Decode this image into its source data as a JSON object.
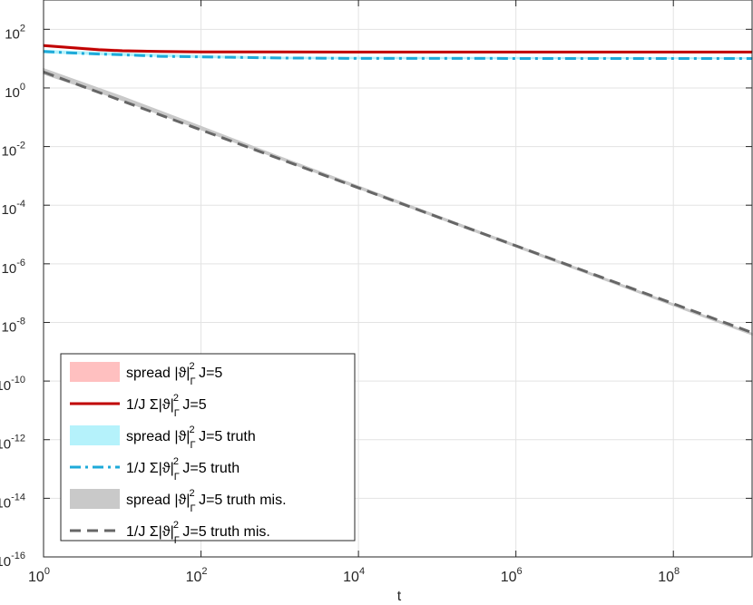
{
  "chart_data": {
    "type": "line",
    "xscale": "log",
    "yscale": "log",
    "xlim": [
      1,
      1000000000
    ],
    "ylim": [
      1e-16,
      1000
    ],
    "grid": true,
    "xlabel": "t",
    "ylabel": "",
    "title": "",
    "x_ticks": [
      {
        "value": 1,
        "base": "10",
        "exp": "0"
      },
      {
        "value": 100,
        "base": "10",
        "exp": "2"
      },
      {
        "value": 10000,
        "base": "10",
        "exp": "4"
      },
      {
        "value": 1000000,
        "base": "10",
        "exp": "6"
      },
      {
        "value": 100000000,
        "base": "10",
        "exp": "8"
      }
    ],
    "y_ticks": [
      {
        "value": 100,
        "base": "10",
        "exp": "2"
      },
      {
        "value": 1,
        "base": "10",
        "exp": "0"
      },
      {
        "value": 0.01,
        "base": "10",
        "exp": "-2"
      },
      {
        "value": 0.0001,
        "base": "10",
        "exp": "-4"
      },
      {
        "value": 1e-06,
        "base": "10",
        "exp": "-6"
      },
      {
        "value": 1e-08,
        "base": "10",
        "exp": "-8"
      },
      {
        "value": 1e-10,
        "base": "10",
        "exp": "-10"
      },
      {
        "value": 1e-12,
        "base": "10",
        "exp": "-12"
      },
      {
        "value": 1e-14,
        "base": "10",
        "exp": "-14"
      },
      {
        "value": 1e-16,
        "base": "10",
        "exp": "-16"
      }
    ],
    "legend_position": "bottom-left",
    "series": [
      {
        "name": "spread |ϑ|Γ2 J=5",
        "kind": "band",
        "color": "#ffc0c0",
        "x": [
          1,
          3,
          10,
          30,
          100,
          1000,
          1000000000.0
        ],
        "lower": [
          27,
          22,
          19,
          17.5,
          17,
          17,
          17
        ],
        "upper": [
          30,
          24,
          20,
          18.5,
          18,
          17.5,
          17.5
        ]
      },
      {
        "name": "1/J Σ|ϑ|Γ2 J=5",
        "kind": "line",
        "style": "solid",
        "color": "#c00000",
        "x": [
          1,
          2,
          5,
          10,
          30,
          100,
          1000,
          10000,
          1000000000.0
        ],
        "values": [
          28,
          24,
          20,
          18.5,
          17.5,
          17,
          16.9,
          16.8,
          16.8
        ]
      },
      {
        "name": "spread |ϑ|Γ2 J=5 truth",
        "kind": "band",
        "color": "#b5f2fb",
        "x": [
          1,
          10,
          100,
          1000,
          1000000000.0
        ],
        "lower": [
          16,
          13,
          11,
          10,
          10
        ],
        "upper": [
          19,
          15,
          12.5,
          11,
          10.5
        ]
      },
      {
        "name": "1/J Σ|ϑ|Γ2 J=5 truth",
        "kind": "line",
        "style": "dashdot",
        "color": "#1eaad9",
        "x": [
          1,
          3,
          10,
          30,
          100,
          1000,
          10000,
          1000000000.0
        ],
        "values": [
          17.5,
          15,
          13.5,
          12,
          11.5,
          10.5,
          10.2,
          10.1
        ]
      },
      {
        "name": "spread |ϑ|Γ2 J=5 truth mis.",
        "kind": "band",
        "color": "#c9c9c9",
        "x": [
          1,
          10,
          100,
          1000,
          1000000000.0
        ],
        "lower": [
          3.0,
          0.38,
          0.038,
          0.0038,
          3.8e-09
        ],
        "upper": [
          4.5,
          0.5,
          0.048,
          0.0045,
          4.2e-09
        ]
      },
      {
        "name": "1/J Σ|ϑ|Γ2 J=5 truth mis.",
        "kind": "line",
        "style": "dashed",
        "color": "#666666",
        "x": [
          1,
          1000000000.0
        ],
        "values": [
          3.5,
          4.5e-09
        ]
      }
    ],
    "legend": [
      {
        "prefix": "spread |ϑ|",
        "sub": "Γ",
        "sup": "2",
        "suffix": " J=5"
      },
      {
        "prefix": "1/J Σ|ϑ|",
        "sub": "Γ",
        "sup": "2",
        "suffix": " J=5"
      },
      {
        "prefix": "spread |ϑ|",
        "sub": "Γ",
        "sup": "2",
        "suffix": " J=5 truth"
      },
      {
        "prefix": "1/J Σ|ϑ|",
        "sub": "Γ",
        "sup": "2",
        "suffix": " J=5 truth"
      },
      {
        "prefix": "spread |ϑ|",
        "sub": "Γ",
        "sup": "2",
        "suffix": " J=5 truth mis."
      },
      {
        "prefix": "1/J Σ|ϑ|",
        "sub": "Γ",
        "sup": "2",
        "suffix": " J=5 truth mis."
      }
    ]
  }
}
